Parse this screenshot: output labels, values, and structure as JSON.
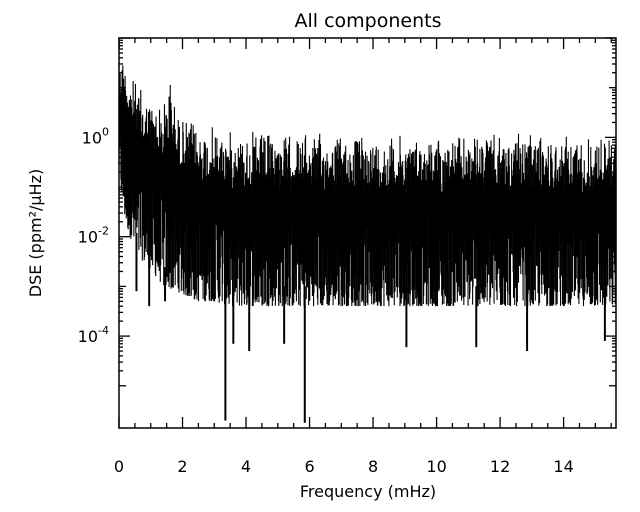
{
  "chart_data": {
    "type": "line",
    "title": "All components",
    "xlabel": "Frequency (mHz)",
    "ylabel": "DSE (ppm²/μHz)",
    "xlim": [
      0,
      15.65
    ],
    "ylim_log10": [
      -5.85,
      2.0
    ],
    "yscale": "log",
    "x_ticks": [
      {
        "value": 0,
        "label": "0"
      },
      {
        "value": 2,
        "label": "2"
      },
      {
        "value": 4,
        "label": "4"
      },
      {
        "value": 6,
        "label": "6"
      },
      {
        "value": 8,
        "label": "8"
      },
      {
        "value": 10,
        "label": "10"
      },
      {
        "value": 12,
        "label": "12"
      },
      {
        "value": 14,
        "label": "14"
      }
    ],
    "y_ticks": [
      {
        "value": 1,
        "base": "10",
        "exponent": "0"
      },
      {
        "value": 0.01,
        "base": "10",
        "exponent": "-2"
      },
      {
        "value": 0.0001,
        "base": "10",
        "exponent": "-4"
      }
    ],
    "series": [
      {
        "color": "#000000",
        "envelope": {
          "x": [
            0.0,
            0.1,
            0.2,
            0.4,
            0.6,
            0.8,
            1.0,
            1.2,
            1.4,
            1.6,
            1.8,
            2.0,
            2.2,
            2.5,
            3.0,
            3.5,
            4.0,
            5.0,
            6.0,
            8.0,
            10.0,
            12.0,
            14.0,
            15.65
          ],
          "upper": [
            30,
            60,
            40,
            20,
            12,
            9,
            7,
            6,
            5,
            25,
            4,
            3,
            2.5,
            2,
            1.8,
            1.5,
            1.4,
            1.3,
            1.3,
            1.2,
            1.2,
            1.2,
            1.2,
            1.3
          ],
          "lower": [
            0.2,
            0.05,
            0.02,
            0.008,
            0.004,
            0.003,
            0.002,
            0.0015,
            0.001,
            0.0009,
            0.0008,
            0.0007,
            0.0006,
            0.0005,
            0.0005,
            0.0004,
            0.0004,
            0.0004,
            0.0004,
            0.0004,
            0.0004,
            0.0004,
            0.0004,
            0.0004
          ]
        },
        "dips": [
          {
            "x": 0.55,
            "y": 0.0008
          },
          {
            "x": 0.95,
            "y": 0.0004
          },
          {
            "x": 1.45,
            "y": 0.0005
          },
          {
            "x": 3.35,
            "y": 2e-06
          },
          {
            "x": 3.6,
            "y": 7e-05
          },
          {
            "x": 4.1,
            "y": 5e-05
          },
          {
            "x": 5.2,
            "y": 7e-05
          },
          {
            "x": 5.85,
            "y": 1.8e-06
          },
          {
            "x": 9.05,
            "y": 6e-05
          },
          {
            "x": 11.25,
            "y": 6e-05
          },
          {
            "x": 12.85,
            "y": 5e-05
          },
          {
            "x": 15.3,
            "y": 8e-05
          }
        ]
      }
    ],
    "grid": false,
    "legend": "none"
  }
}
